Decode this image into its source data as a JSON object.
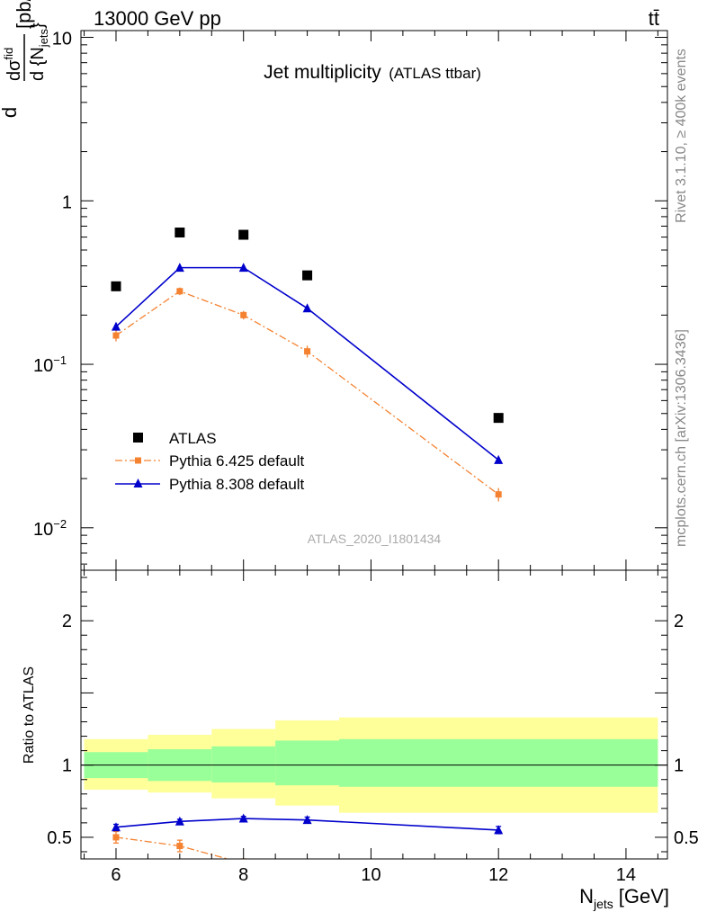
{
  "header": {
    "left": "13000 GeV pp",
    "right": "tt̄"
  },
  "side_text": {
    "rivet": "Rivet 3.1.10, ≥ 400k events",
    "mcplots": "mcplots.cern.ch [arXiv:1306.3436]"
  },
  "colors": {
    "atlas": "#000000",
    "pythia6": "#f58231",
    "pythia8": "#0000cc",
    "band_outer": "#ffff99",
    "band_inner": "#99ff99"
  },
  "chart_data": [
    {
      "type": "scatter",
      "title": "Jet multiplicity",
      "subtitle": "(ATLAS ttbar)",
      "ylabel_num": "dσ",
      "ylabel_sup": "fid",
      "ylabel_den": "d {N",
      "ylabel_den_sub": "jets",
      "ylabel_den_end": "}",
      "ylabel_units": "[pb/GeV]",
      "yscale": "log",
      "ylim": [
        0.0055,
        11
      ],
      "xlim": [
        5.45,
        14.65
      ],
      "yticks": [
        {
          "value": 10,
          "label": "10",
          "exp": ""
        },
        {
          "value": 1,
          "label": "1",
          "exp": ""
        },
        {
          "value": 0.1,
          "label": "10",
          "exp": "−1"
        },
        {
          "value": 0.01,
          "label": "10",
          "exp": "−2"
        }
      ],
      "legend_position": "lower-left",
      "watermark": "ATLAS_2020_I1801434",
      "series": [
        {
          "name": "ATLAS",
          "marker": "square",
          "line": "none",
          "x": [
            6,
            7,
            8,
            9,
            12
          ],
          "y": [
            0.3,
            0.64,
            0.62,
            0.35,
            0.047
          ]
        },
        {
          "name": "Pythia 6.425 default",
          "marker": "small-square",
          "line": "dashdot",
          "x": [
            6,
            7,
            8,
            9,
            12
          ],
          "y": [
            0.15,
            0.28,
            0.2,
            0.12,
            0.016
          ],
          "yerr": [
            0.012,
            0.015,
            0.012,
            0.01,
            0.0015
          ]
        },
        {
          "name": "Pythia 8.308 default",
          "marker": "triangle",
          "line": "solid",
          "x": [
            6,
            7,
            8,
            9,
            12
          ],
          "y": [
            0.17,
            0.39,
            0.39,
            0.22,
            0.026
          ]
        }
      ]
    },
    {
      "type": "line",
      "ylabel": "Ratio to ATLAS",
      "xlabel": "N",
      "xlabel_sub": "jets",
      "xlabel_units": "[GeV]",
      "ylim": [
        0.35,
        2.35
      ],
      "xlim": [
        5.45,
        14.65
      ],
      "xticks": [
        6,
        8,
        10,
        12,
        14
      ],
      "yticks": [
        0.5,
        1,
        2
      ],
      "ytick_labels": [
        "0.5",
        "1",
        "2"
      ],
      "reference_line": 1,
      "uncertainty_bands": {
        "bins": [
          [
            5.5,
            6.5
          ],
          [
            6.5,
            7.5
          ],
          [
            7.5,
            8.5
          ],
          [
            8.5,
            9.5
          ],
          [
            9.5,
            14.5
          ]
        ],
        "inner": [
          [
            0.91,
            1.09
          ],
          [
            0.89,
            1.11
          ],
          [
            0.88,
            1.13
          ],
          [
            0.86,
            1.17
          ],
          [
            0.85,
            1.18
          ]
        ],
        "outer": [
          [
            0.83,
            1.18
          ],
          [
            0.81,
            1.21
          ],
          [
            0.77,
            1.25
          ],
          [
            0.72,
            1.31
          ],
          [
            0.67,
            1.33
          ]
        ]
      },
      "series": [
        {
          "name": "Pythia 6.425 default",
          "marker": "small-square",
          "line": "dashdot",
          "x": [
            6,
            7,
            8
          ],
          "y": [
            0.5,
            0.44,
            0.32
          ],
          "yerr": [
            0.04,
            0.04,
            0.03
          ]
        },
        {
          "name": "Pythia 8.308 default",
          "marker": "triangle",
          "line": "solid",
          "x": [
            6,
            7,
            8,
            9,
            12
          ],
          "y": [
            0.57,
            0.61,
            0.63,
            0.62,
            0.55
          ],
          "yerr": [
            0.02,
            0.015,
            0.015,
            0.02,
            0.025
          ]
        }
      ]
    }
  ]
}
